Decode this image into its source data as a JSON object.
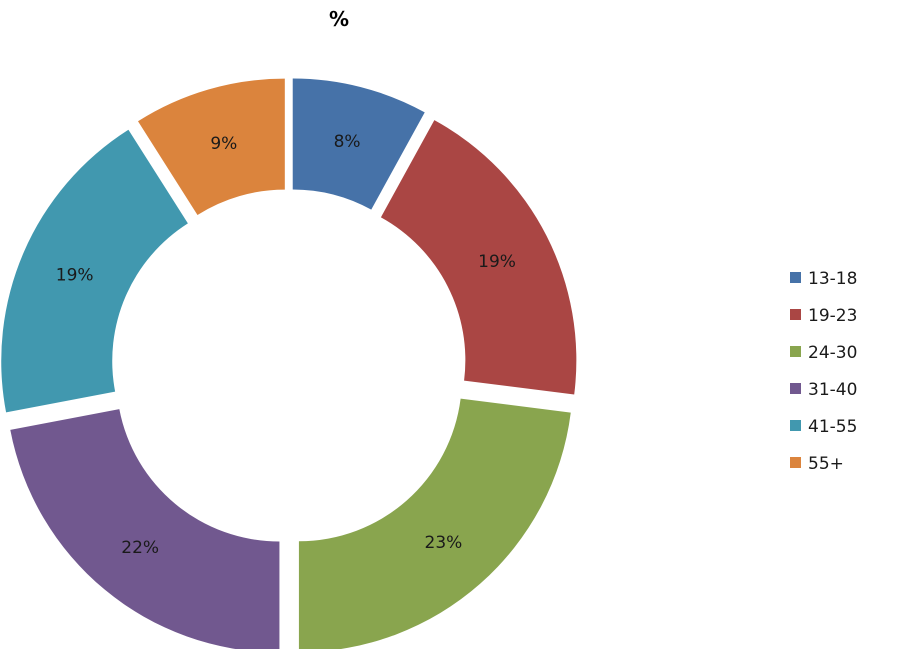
{
  "chart_data": {
    "type": "pie",
    "title": "%",
    "categories": [
      "13-18",
      "19-23",
      "24-30",
      "31-40",
      "41-55",
      "55+"
    ],
    "values": [
      8,
      19,
      23,
      22,
      19,
      9
    ],
    "labels": [
      "8%",
      "19%",
      "23%",
      "22%",
      "19%",
      "9%"
    ],
    "colors": [
      "#4672a8",
      "#aa4644",
      "#89a54e",
      "#71588f",
      "#4198af",
      "#db843d"
    ],
    "legend_position": "right",
    "style": "exploded doughnut"
  }
}
